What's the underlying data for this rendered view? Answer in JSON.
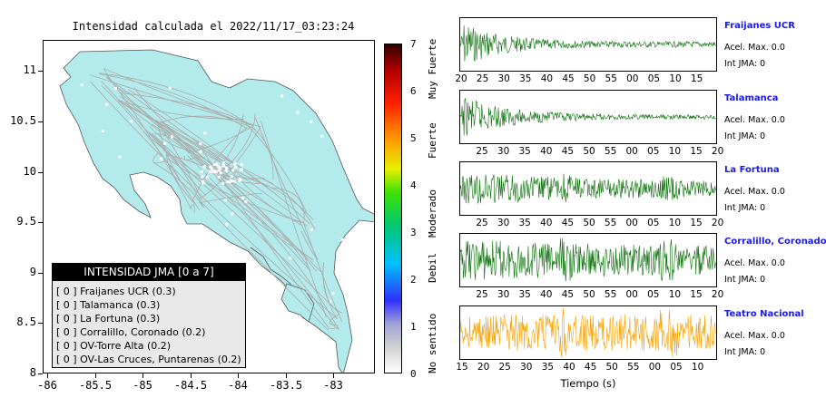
{
  "map": {
    "title": "Intensidad calculada el 2022/11/17_03:23:24",
    "y_ticks": [
      "11",
      "10.5",
      "10",
      "9.5",
      "9",
      "8.5",
      "8"
    ],
    "x_ticks": [
      "-86",
      "-85.5",
      "-85",
      "-84.5",
      "-84",
      "-83.5",
      "-83"
    ],
    "fill_color": "#b3ebec",
    "road_color": "#aaaaaa"
  },
  "colorbar": {
    "ticks": [
      "7",
      "6",
      "5",
      "4",
      "3",
      "2",
      "1",
      "0"
    ],
    "words": [
      "Muy Fuerte",
      "Fuerte",
      "Moderado",
      "Debil",
      "No sentido"
    ]
  },
  "legend": {
    "title": "INTENSIDAD JMA [0 a 7]",
    "rows": [
      "[ 0 ]  Fraijanes UCR (0.3)",
      "[ 0 ]  Talamanca (0.3)",
      "[ 0 ]  La Fortuna (0.3)",
      "[ 0 ]  Corralillo, Coronado (0.2)",
      "[ 0 ]  OV-Torre Alta (0.2)",
      "[ 0 ]  OV-Las Cruces, Puntarenas (0.2)"
    ]
  },
  "waveforms": [
    {
      "station": "Fraijanes UCR",
      "acel": "Acel. Max. 0.0",
      "int": "Int JMA: 0",
      "color": "#0a6e0a",
      "ticks": [
        "20",
        "25",
        "30",
        "35",
        "40",
        "45",
        "50",
        "55",
        "00",
        "05",
        "10",
        "15"
      ]
    },
    {
      "station": "Talamanca",
      "acel": "Acel. Max. 0.0",
      "int": "Int JMA: 0",
      "color": "#0a6e0a",
      "ticks": [
        "25",
        "30",
        "35",
        "40",
        "45",
        "50",
        "55",
        "00",
        "05",
        "10",
        "15",
        "20"
      ]
    },
    {
      "station": "La Fortuna",
      "acel": "Acel. Max. 0.0",
      "int": "Int JMA: 0",
      "color": "#0a6e0a",
      "ticks": [
        "25",
        "30",
        "35",
        "40",
        "45",
        "50",
        "55",
        "00",
        "05",
        "10",
        "15",
        "20"
      ]
    },
    {
      "station": "Corralillo, Coronado",
      "acel": "Acel. Max. 0.0",
      "int": "Int JMA: 0",
      "color": "#0a6e0a",
      "ticks": [
        "25",
        "30",
        "35",
        "40",
        "45",
        "50",
        "55",
        "00",
        "05",
        "10",
        "15",
        "20"
      ]
    },
    {
      "station": "Teatro Nacional",
      "acel": "Acel. Max. 0.0",
      "int": "Int JMA: 0",
      "color": "#f5a000",
      "ticks": [
        "15",
        "20",
        "25",
        "30",
        "35",
        "40",
        "45",
        "50",
        "55",
        "00",
        "05",
        "10"
      ]
    }
  ],
  "xlabel": "Tiempo (s)"
}
